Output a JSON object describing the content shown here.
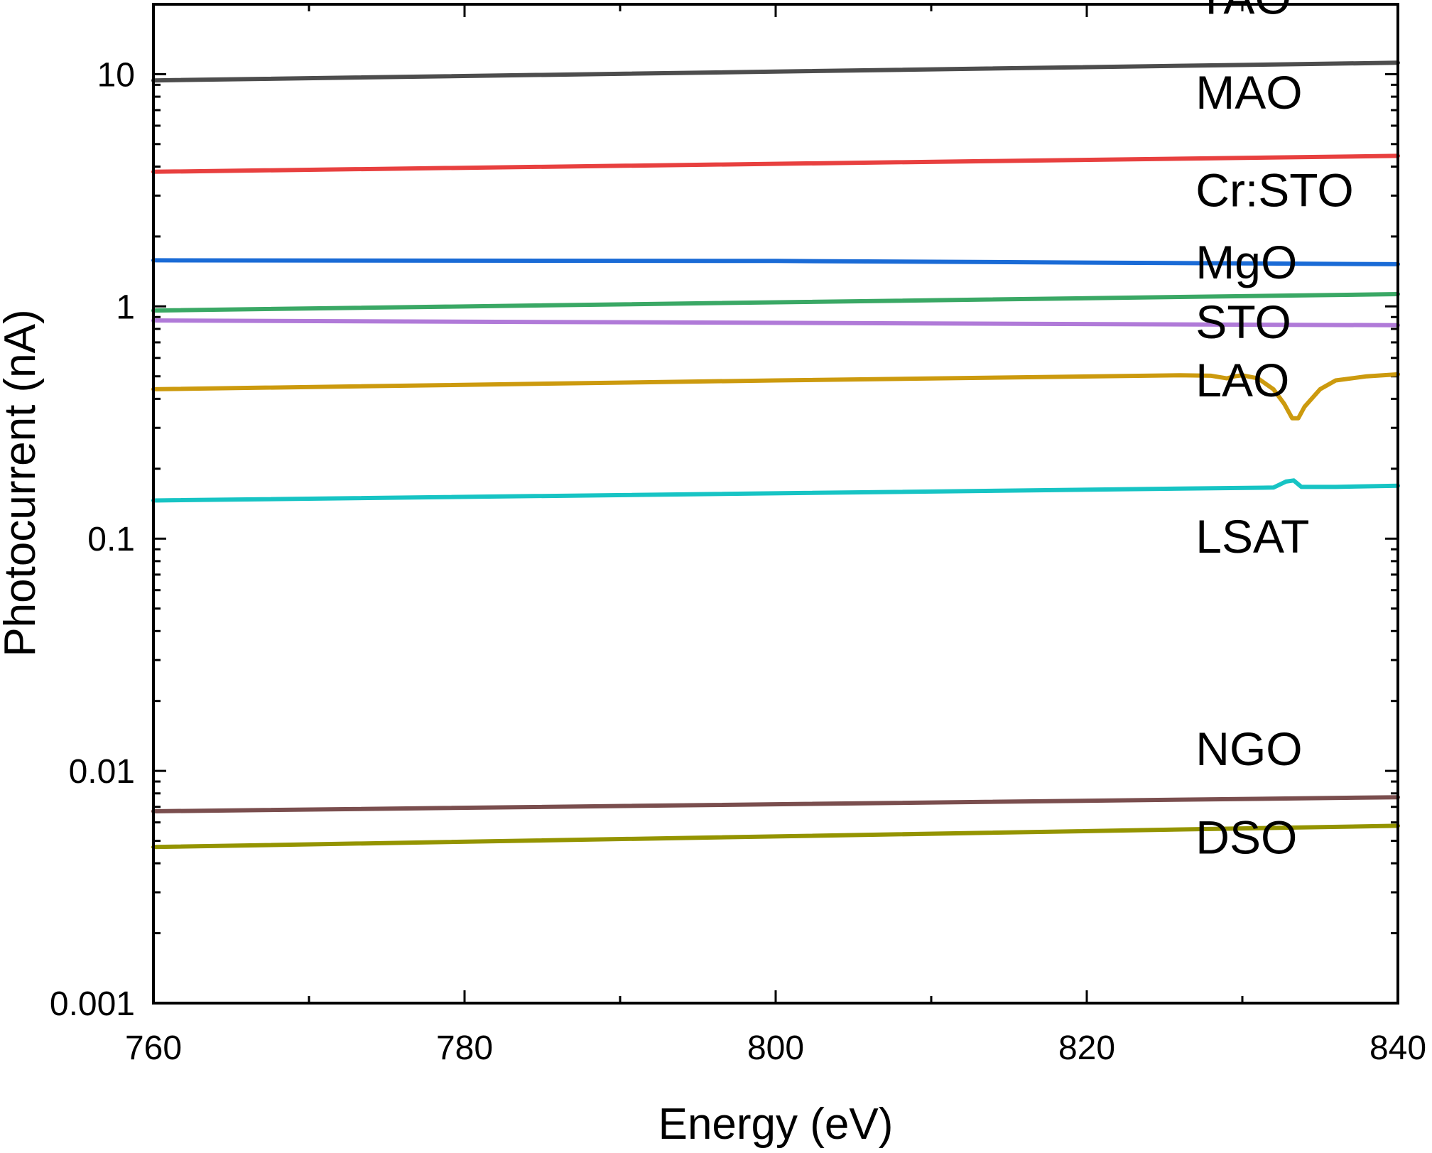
{
  "chart_data": {
    "type": "line",
    "title": "",
    "xlabel": "Energy (eV)",
    "ylabel": "Photocurrent (nA)",
    "xlim": [
      760,
      840
    ],
    "ylim": [
      0.001,
      20
    ],
    "yscale": "log",
    "grid": false,
    "x_ticks": [
      760,
      780,
      800,
      820,
      840
    ],
    "x_tick_labels": [
      "760",
      "780",
      "800",
      "820",
      "840"
    ],
    "y_ticks": [
      0.001,
      0.01,
      0.1,
      1,
      10
    ],
    "y_tick_labels": [
      "0.001",
      "0.01",
      "0.1",
      "1",
      "10"
    ],
    "series": [
      {
        "name": "YAO",
        "color": "#4d4d4d",
        "points": [
          [
            760,
            9.4
          ],
          [
            840,
            11.2
          ]
        ],
        "label_at": [
          827,
          18.2
        ]
      },
      {
        "name": "MAO",
        "color": "#e8403f",
        "points": [
          [
            760,
            3.8
          ],
          [
            840,
            4.45
          ]
        ],
        "label_at": [
          827,
          7.1
        ]
      },
      {
        "name": "Cr:STO",
        "color": "#1a6bd6",
        "points": [
          [
            760,
            1.58
          ],
          [
            800,
            1.57
          ],
          [
            840,
            1.52
          ]
        ],
        "label_at": [
          827,
          2.7
        ]
      },
      {
        "name": "MgO",
        "color": "#3aa865",
        "points": [
          [
            760,
            0.96
          ],
          [
            840,
            1.13
          ]
        ],
        "label_at": [
          827,
          1.32
        ]
      },
      {
        "name": "STO",
        "color": "#b07ad8",
        "points": [
          [
            760,
            0.87
          ],
          [
            840,
            0.83
          ]
        ],
        "label_at": [
          827,
          0.73
        ]
      },
      {
        "name": "LAO",
        "color": "#cc9a0e",
        "points": [
          [
            760,
            0.44
          ],
          [
            800,
            0.48
          ],
          [
            826,
            0.505
          ],
          [
            828,
            0.503
          ],
          [
            829,
            0.49
          ],
          [
            829.5,
            0.5
          ],
          [
            830,
            0.505
          ],
          [
            831,
            0.49
          ],
          [
            832,
            0.44
          ],
          [
            832.7,
            0.38
          ],
          [
            833.2,
            0.33
          ],
          [
            833.6,
            0.33
          ],
          [
            834,
            0.37
          ],
          [
            835,
            0.44
          ],
          [
            836,
            0.48
          ],
          [
            838,
            0.5
          ],
          [
            840,
            0.51
          ]
        ],
        "label_at": [
          827,
          0.41
        ]
      },
      {
        "name": "LSAT",
        "color": "#17c4c4",
        "points": [
          [
            760,
            0.146
          ],
          [
            832,
            0.166
          ],
          [
            832.8,
            0.176
          ],
          [
            833.3,
            0.178
          ],
          [
            833.8,
            0.167
          ],
          [
            836,
            0.167
          ],
          [
            840,
            0.169
          ]
        ],
        "label_at": [
          827,
          0.087
        ]
      },
      {
        "name": "NGO",
        "color": "#7a4e4e",
        "points": [
          [
            760,
            0.0067
          ],
          [
            840,
            0.0077
          ]
        ],
        "label_at": [
          827,
          0.0106
        ]
      },
      {
        "name": "DSO",
        "color": "#949400",
        "points": [
          [
            760,
            0.0047
          ],
          [
            840,
            0.0058
          ]
        ],
        "label_at": [
          827,
          0.0044
        ]
      }
    ]
  }
}
